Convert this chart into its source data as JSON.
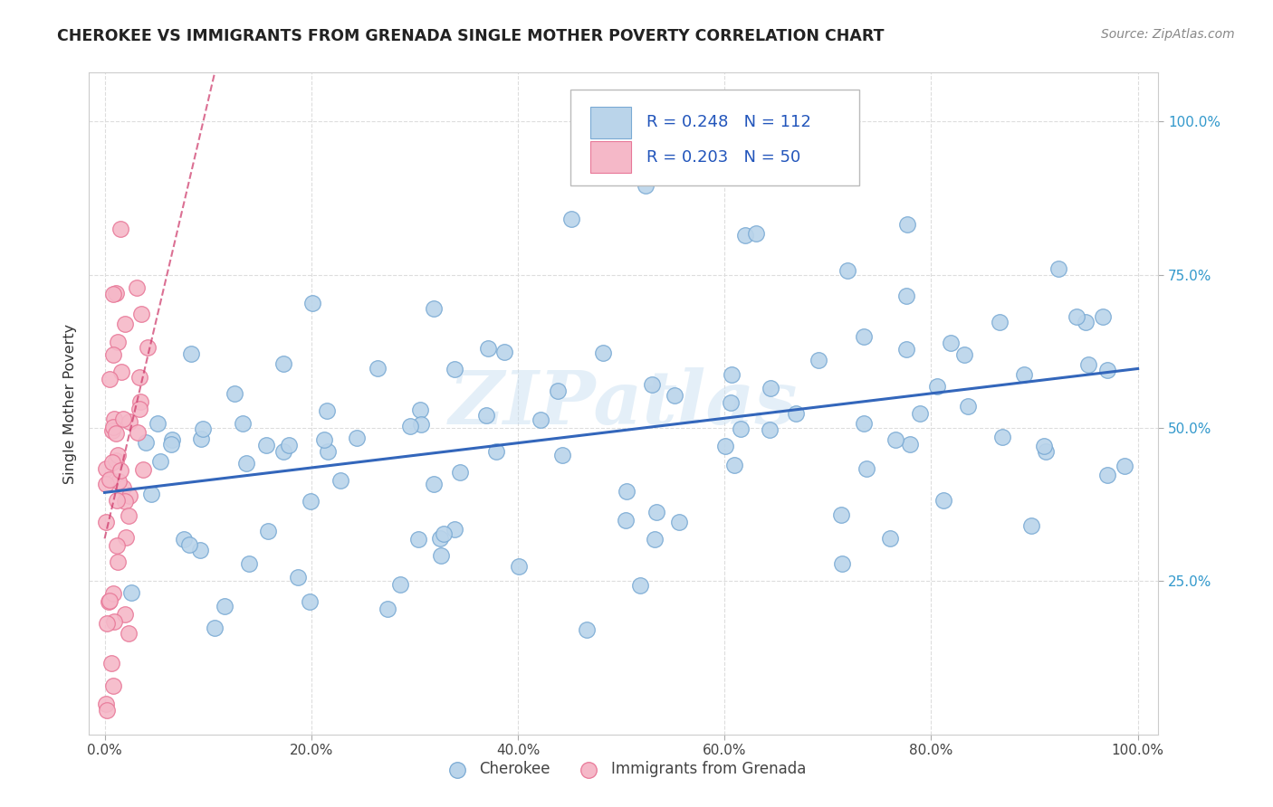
{
  "title": "CHEROKEE VS IMMIGRANTS FROM GRENADA SINGLE MOTHER POVERTY CORRELATION CHART",
  "source": "Source: ZipAtlas.com",
  "ylabel": "Single Mother Poverty",
  "x_tick_labels": [
    "0.0%",
    "20.0%",
    "40.0%",
    "60.0%",
    "80.0%",
    "100.0%"
  ],
  "x_tick_vals": [
    0.0,
    0.2,
    0.4,
    0.6,
    0.8,
    1.0
  ],
  "y_tick_labels": [
    "25.0%",
    "50.0%",
    "75.0%",
    "100.0%"
  ],
  "y_tick_vals": [
    0.25,
    0.5,
    0.75,
    1.0
  ],
  "cherokee_R": 0.248,
  "cherokee_N": 112,
  "grenada_R": 0.203,
  "grenada_N": 50,
  "cherokee_color": "#bad4ea",
  "cherokee_edge": "#7aaad4",
  "grenada_color": "#f5b8c8",
  "grenada_edge": "#e87898",
  "trendline_cherokee_color": "#3366bb",
  "trendline_grenada_color": "#cc3366",
  "watermark": "ZIPatlas",
  "background_color": "#ffffff",
  "grid_color": "#dddddd",
  "legend_text_color": "#2255bb"
}
